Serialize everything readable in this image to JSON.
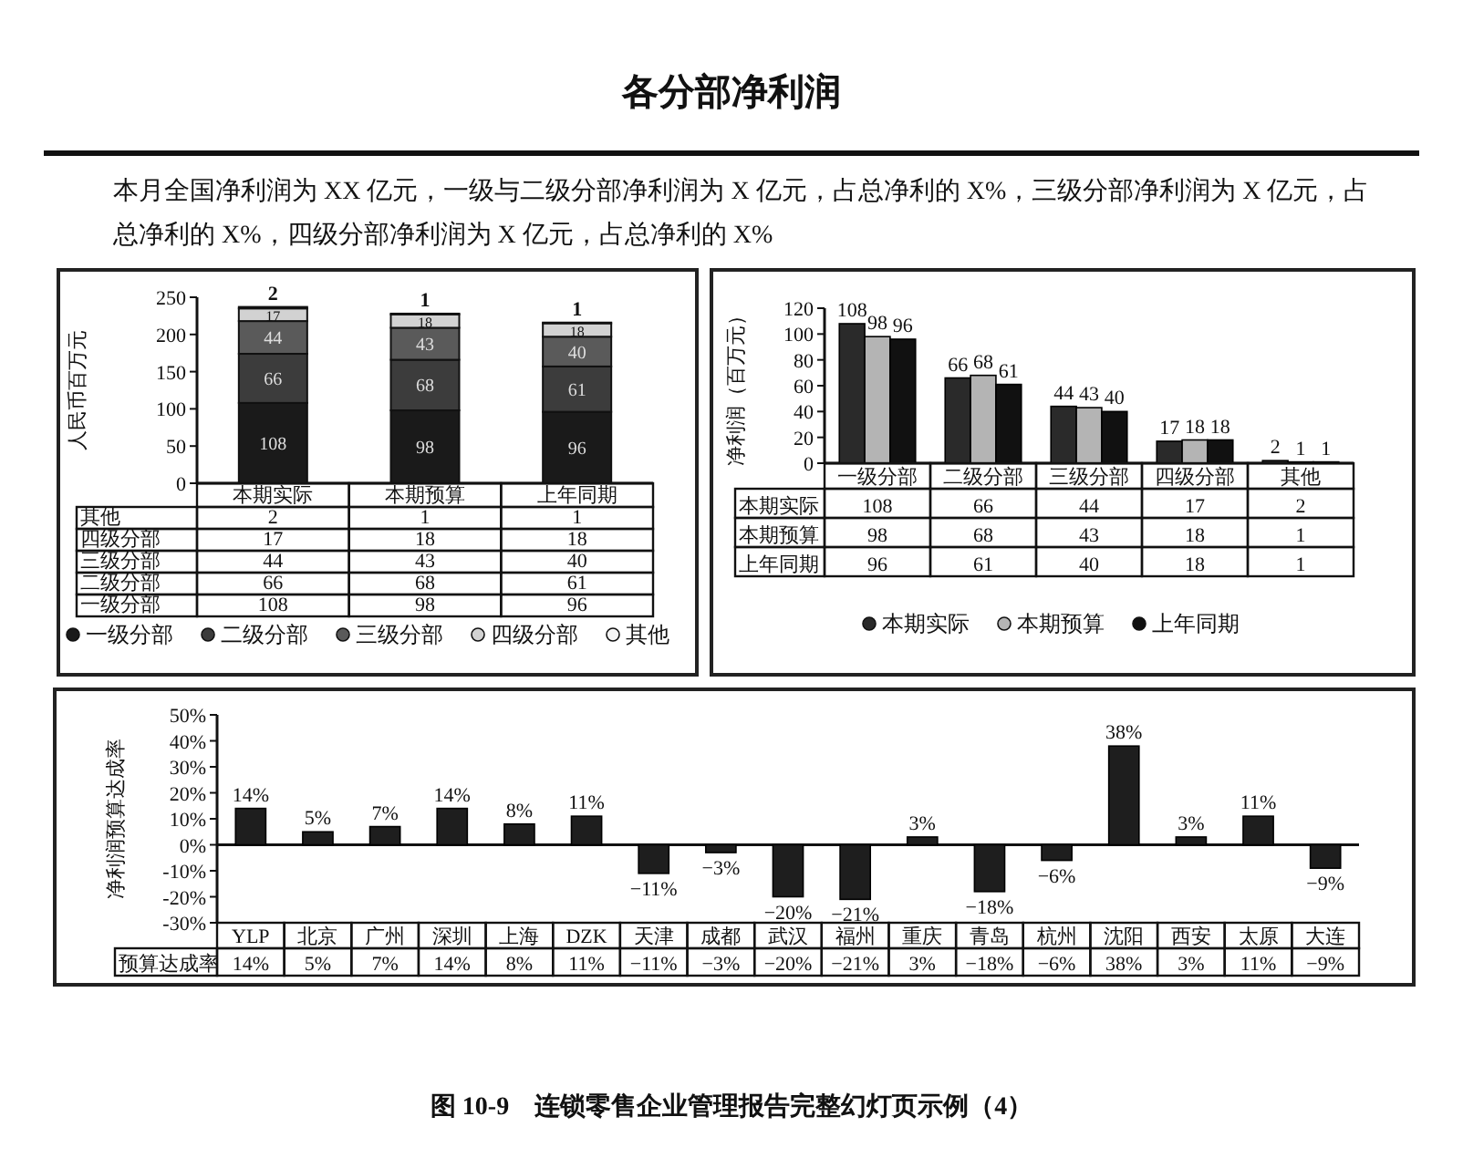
{
  "chart_data": [
    {
      "type": "bar",
      "title": "各分部净利润",
      "subtitle": "本月全国净利润为 XX 亿元，一级与二级分部净利润为 X 亿元，占总净利的 X%，三级分部净利润为 X 亿元，占总净利的 X%，四级分部净利润为 X 亿元，占总净利的 X%",
      "ylabel": "人民币百万元",
      "categories": [
        "本期实际",
        "本期预算",
        "上年同期"
      ],
      "stacked": true,
      "legend": "bottom",
      "ylim": [
        0,
        250
      ],
      "yticks": [
        0,
        50,
        100,
        150,
        200,
        250
      ],
      "series": [
        {
          "name": "一级分部",
          "color": "#1a1a1a",
          "values": [
            108,
            98,
            96
          ],
          "value_labels": [
            "108",
            "98",
            "96"
          ]
        },
        {
          "name": "二级分部",
          "color": "#3c3c3c",
          "values": [
            66,
            68,
            61
          ],
          "value_labels": [
            "66",
            "68",
            "61"
          ]
        },
        {
          "name": "三级分部",
          "color": "#5a5a5a",
          "values": [
            44,
            43,
            40
          ],
          "value_labels": [
            "44",
            "43",
            "40"
          ]
        },
        {
          "name": "四级分部",
          "color": "#d2d2d2",
          "values": [
            17,
            18,
            18
          ],
          "value_labels": [
            "17",
            "18",
            "18"
          ]
        },
        {
          "name": "其他",
          "color": "#f4f4f4",
          "values": [
            2,
            1,
            1
          ],
          "value_labels": [
            "2",
            "1",
            "1"
          ]
        }
      ]
    },
    {
      "type": "bar",
      "ylabel": "净利润（百万元）",
      "categories": [
        "一级分部",
        "二级分部",
        "三级分部",
        "四级分部",
        "其他"
      ],
      "legend": "bottom",
      "ylim": [
        0,
        120
      ],
      "yticks": [
        0,
        20,
        40,
        60,
        80,
        100,
        120
      ],
      "series": [
        {
          "name": "本期实际",
          "color": "#2a2a2a",
          "values": [
            108,
            66,
            44,
            17,
            2
          ],
          "value_labels": [
            "108",
            "66",
            "44",
            "17",
            "2"
          ]
        },
        {
          "name": "本期预算",
          "color": "#b4b4b4",
          "values": [
            98,
            68,
            43,
            18,
            1
          ],
          "value_labels": [
            "98",
            "68",
            "43",
            "18",
            "1"
          ]
        },
        {
          "name": "上年同期",
          "color": "#111111",
          "values": [
            96,
            61,
            40,
            18,
            1
          ],
          "value_labels": [
            "96",
            "61",
            "40",
            "18",
            "1"
          ]
        }
      ]
    },
    {
      "type": "bar",
      "ylabel": "净利润预算达成率",
      "categories": [
        "YLP",
        "北京",
        "广州",
        "深圳",
        "上海",
        "DZK",
        "天津",
        "成都",
        "武汉",
        "福州",
        "重庆",
        "青岛",
        "杭州",
        "沈阳",
        "西安",
        "太原",
        "大连"
      ],
      "ylim": [
        -30,
        50
      ],
      "yticks": [
        {
          "value": -30,
          "label": "-30%"
        },
        {
          "value": -20,
          "label": "-20%"
        },
        {
          "value": -10,
          "label": "-10%"
        },
        {
          "value": 0,
          "label": "0%"
        },
        {
          "value": 10,
          "label": "10%"
        },
        {
          "value": 20,
          "label": "20%"
        },
        {
          "value": 30,
          "label": "30%"
        },
        {
          "value": 40,
          "label": "40%"
        },
        {
          "value": 50,
          "label": "50%"
        }
      ],
      "series": [
        {
          "name": "预算达成率",
          "color": "#1e1e1e",
          "values": [
            14,
            5,
            7,
            14,
            8,
            11,
            -11,
            -3,
            -20,
            -21,
            3,
            -18,
            -6,
            38,
            3,
            11,
            -9
          ],
          "value_labels": [
            "14%",
            "5%",
            "7%",
            "14%",
            "8%",
            "11%",
            "−11%",
            "−3%",
            "−20%",
            "−21%",
            "3%",
            "−18%",
            "−6%",
            "38%",
            "3%",
            "11%",
            "−9%"
          ]
        }
      ],
      "annotations": [
        "图 10-9　连锁零售企业管理报告完整幻灯页示例（4）"
      ]
    }
  ]
}
